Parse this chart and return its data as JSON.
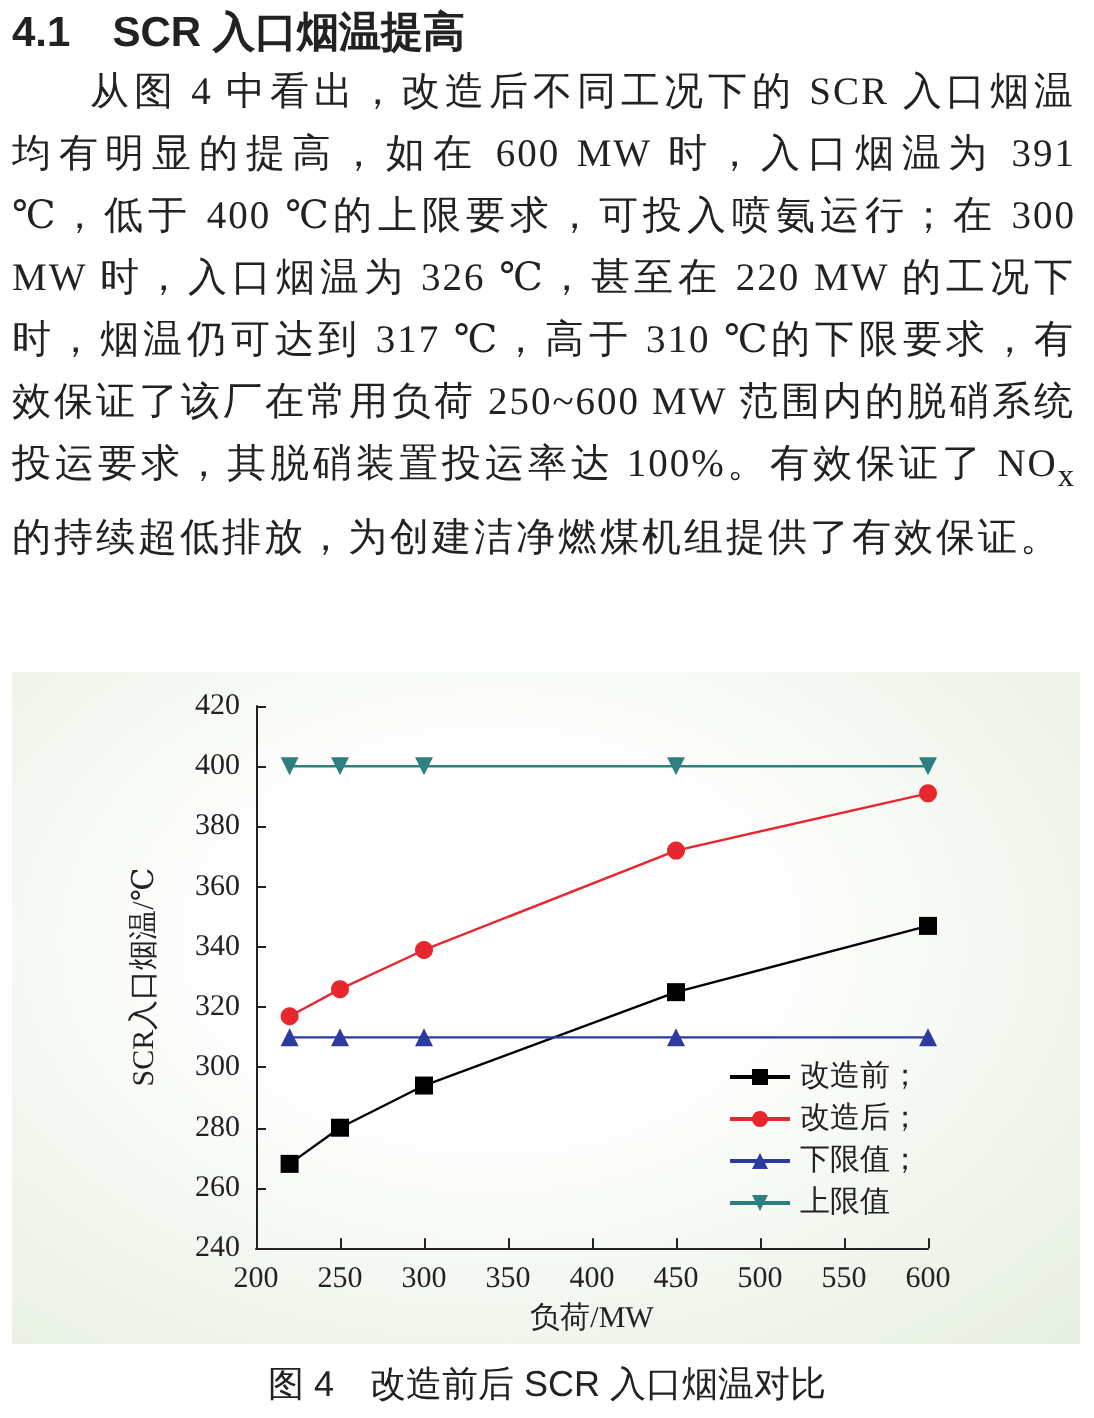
{
  "chart_data": {
    "type": "line",
    "xlabel": "负荷/MW",
    "ylabel": "SCR入口烟温/℃",
    "annotations": [
      "4.1　SCR 入口烟温提高",
      "从图 4 中看出，改造后不同工况下的 SCR 入口烟温均有明显的提高，如在 600 MW 时，入口烟温为 391 ℃，低于 400 ℃的上限要求，可投入喷氨运行；在 300 MW 时，入口烟温为 326 ℃，甚至在 220 MW 的工况下时，烟温仍可达到 317 ℃，高于 310 ℃的下限要求，有效保证了该厂在常用负荷 250~600 MW 范围内的脱硝系统投运要求，其脱硝装置投运率达 100%。有效保证了 NO$_{x}$ 的持续超低排放，为创建洁净燃煤机组提供了有效保证。",
      "图 4　改造前后 SCR 入口烟温对比"
    ],
    "x": [
      220,
      250,
      300,
      450,
      600
    ],
    "series": [
      {
        "name": "改造前；",
        "color": "#000000",
        "marker": "square",
        "values": [
          268,
          280,
          294,
          325,
          347
        ]
      },
      {
        "name": "改造后；",
        "color": "#e8262d",
        "marker": "circle",
        "values": [
          317,
          326,
          339,
          372,
          391
        ]
      },
      {
        "name": "下限值；",
        "color": "#2b3a9e",
        "marker": "triangle",
        "values": [
          310,
          310,
          310,
          310,
          310
        ]
      },
      {
        "name": "上限值",
        "color": "#2e8080",
        "marker": "triangle-down",
        "values": [
          400,
          400,
          400,
          400,
          400
        ]
      }
    ],
    "xlim": [
      200,
      600
    ],
    "xticks": [
      200,
      250,
      300,
      350,
      400,
      450,
      500,
      550,
      600
    ],
    "ylim": [
      240,
      420
    ],
    "yticks": [
      240,
      260,
      280,
      300,
      320,
      340,
      360,
      380,
      400,
      420
    ],
    "grid": false,
    "legend": "bottom right",
    "line_style": "solid"
  }
}
